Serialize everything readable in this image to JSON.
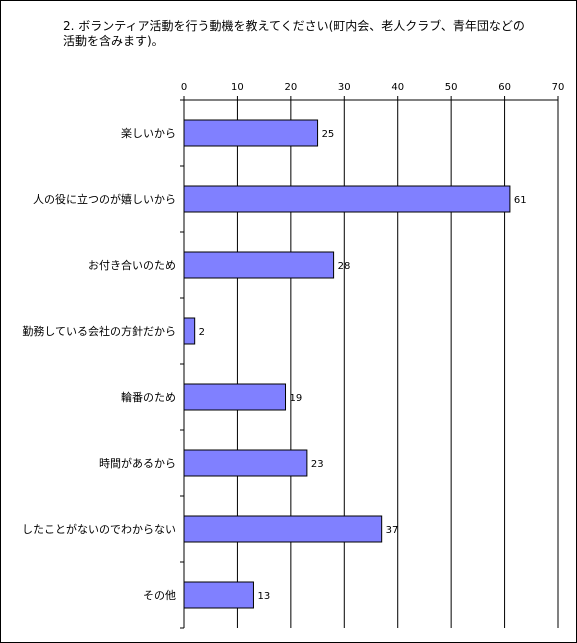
{
  "chart_data": {
    "type": "bar",
    "orientation": "horizontal",
    "title": "2. ボランティア活動を行う動機を教えてください(町内会、老人クラブ、青年団などの活動を含みます)。",
    "categories": [
      "楽しいから",
      "人の役に立つのが嬉しいから",
      "お付き合いのため",
      "勤務している会社の方針だから",
      "輪番のため",
      "時間があるから",
      "したことがないのでわからない",
      "その他"
    ],
    "values": [
      25,
      61,
      28,
      2,
      19,
      23,
      37,
      13
    ],
    "xlim": [
      0,
      70
    ],
    "xticks": [
      0,
      10,
      20,
      30,
      40,
      50,
      60,
      70
    ],
    "xaxis_position": "top",
    "grid": true,
    "legend": false,
    "bar_color": "#8080ff"
  }
}
